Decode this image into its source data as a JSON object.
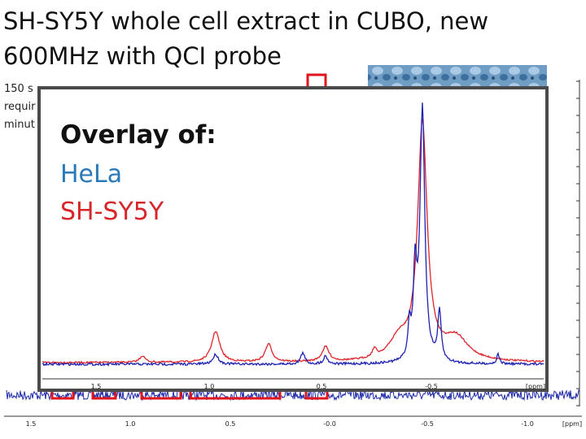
{
  "title": [
    "SH-SY5Y whole cell extract in CUBO, new",
    "600MHz with QCI probe"
  ],
  "notes": [
    "150 s",
    "requir",
    "minut"
  ],
  "overlay": {
    "heading": "Overlay of:",
    "items": [
      "HeLa",
      "SH-SY5Y"
    ]
  },
  "outer_axis": {
    "ticks": [
      "1.5",
      "1.0",
      "0.5",
      "-0.0",
      "-0.5",
      "-1.0"
    ],
    "unit": "[ppm]"
  },
  "inner_axis": {
    "ticks": [
      "1.5",
      "1.0",
      "0.5",
      "-0.5"
    ],
    "unit": "[ppm]"
  }
}
